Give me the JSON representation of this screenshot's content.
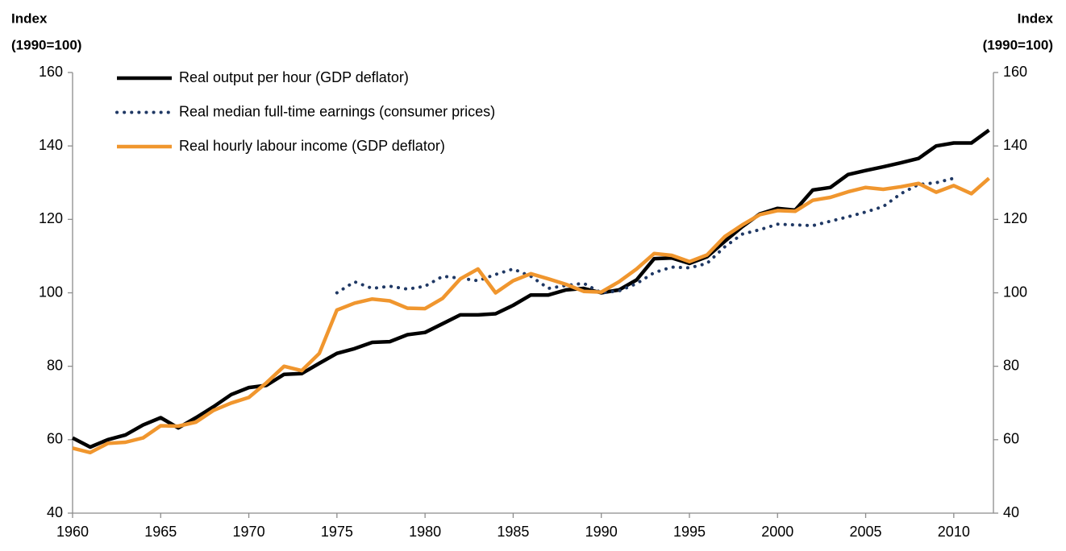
{
  "chart_data": {
    "type": "line",
    "y_label": [
      "Index",
      "(1990=100)"
    ],
    "y2_label": [
      "Index",
      "(1990=100)"
    ],
    "x": [
      1960,
      1961,
      1962,
      1963,
      1964,
      1965,
      1966,
      1967,
      1968,
      1969,
      1970,
      1971,
      1972,
      1973,
      1974,
      1975,
      1976,
      1977,
      1978,
      1979,
      1980,
      1981,
      1982,
      1983,
      1984,
      1985,
      1986,
      1987,
      1988,
      1989,
      1990,
      1991,
      1992,
      1993,
      1994,
      1995,
      1996,
      1997,
      1998,
      1999,
      2000,
      2001,
      2002,
      2003,
      2004,
      2005,
      2006,
      2007,
      2008,
      2009,
      2010,
      2011,
      2012
    ],
    "series": [
      {
        "name": "Real output per hour (GDP deflator)",
        "color": "#000000",
        "style": "solid",
        "values": [
          60.5,
          58,
          60,
          61.3,
          64,
          66,
          63.2,
          66,
          69,
          72.3,
          74.2,
          74.8,
          77.8,
          78,
          80.8,
          83.5,
          84.8,
          86.5,
          86.7,
          88.6,
          89.2,
          91.6,
          94,
          94,
          94.3,
          96.6,
          99.4,
          99.4,
          100.8,
          101.2,
          100,
          100.8,
          103.5,
          109.3,
          109.5,
          108,
          109.8,
          114,
          118,
          121.5,
          123,
          122.5,
          128,
          128.7,
          132.2,
          133.3,
          134.3,
          135.4,
          136.6,
          140,
          140.8,
          140.8,
          144.3
        ]
      },
      {
        "name": "Real median full-time earnings (consumer prices)",
        "color": "#1f3864",
        "style": "dotted",
        "values": [
          null,
          null,
          null,
          null,
          null,
          null,
          null,
          null,
          null,
          null,
          null,
          null,
          null,
          null,
          null,
          100,
          103,
          101.2,
          101.8,
          101,
          101.8,
          104.5,
          104,
          103.3,
          105,
          106.5,
          104.5,
          101.2,
          102,
          102.6,
          100,
          100.5,
          102.5,
          105.5,
          107,
          106.8,
          108,
          112.5,
          116,
          117.2,
          118.7,
          118.5,
          118.3,
          119.5,
          120.7,
          122,
          123.5,
          127,
          129.5,
          130,
          131.2,
          null,
          null
        ]
      },
      {
        "name": "Real hourly labour income (GDP deflator)",
        "color": "#f0962e",
        "style": "solid",
        "values": [
          57.7,
          56.5,
          59,
          59.3,
          60.5,
          63.8,
          63.7,
          64.8,
          68,
          70,
          71.5,
          75.5,
          80,
          78.8,
          83.5,
          95.3,
          97.2,
          98.3,
          97.8,
          95.8,
          95.7,
          98.5,
          103.8,
          106.5,
          100,
          103.3,
          105.2,
          103.8,
          102.3,
          100.4,
          100.2,
          103,
          106.5,
          110.7,
          110.2,
          108.5,
          110.3,
          115.3,
          118.5,
          121.3,
          122.4,
          122.2,
          125.2,
          126,
          127.5,
          128.7,
          128.2,
          128.9,
          129.8,
          127.4,
          129.2,
          127,
          131.2
        ]
      }
    ],
    "xlim": [
      1960,
      2012.25
    ],
    "xticks": [
      1960,
      1965,
      1970,
      1975,
      1980,
      1985,
      1990,
      1995,
      2000,
      2005,
      2010
    ],
    "ylim": [
      40,
      160
    ],
    "yticks": [
      40,
      60,
      80,
      100,
      120,
      140,
      160
    ],
    "y2lim": [
      40,
      160
    ],
    "y2ticks": [
      40,
      60,
      80,
      100,
      120,
      140,
      160
    ],
    "grid": false,
    "legend": "top-left"
  }
}
